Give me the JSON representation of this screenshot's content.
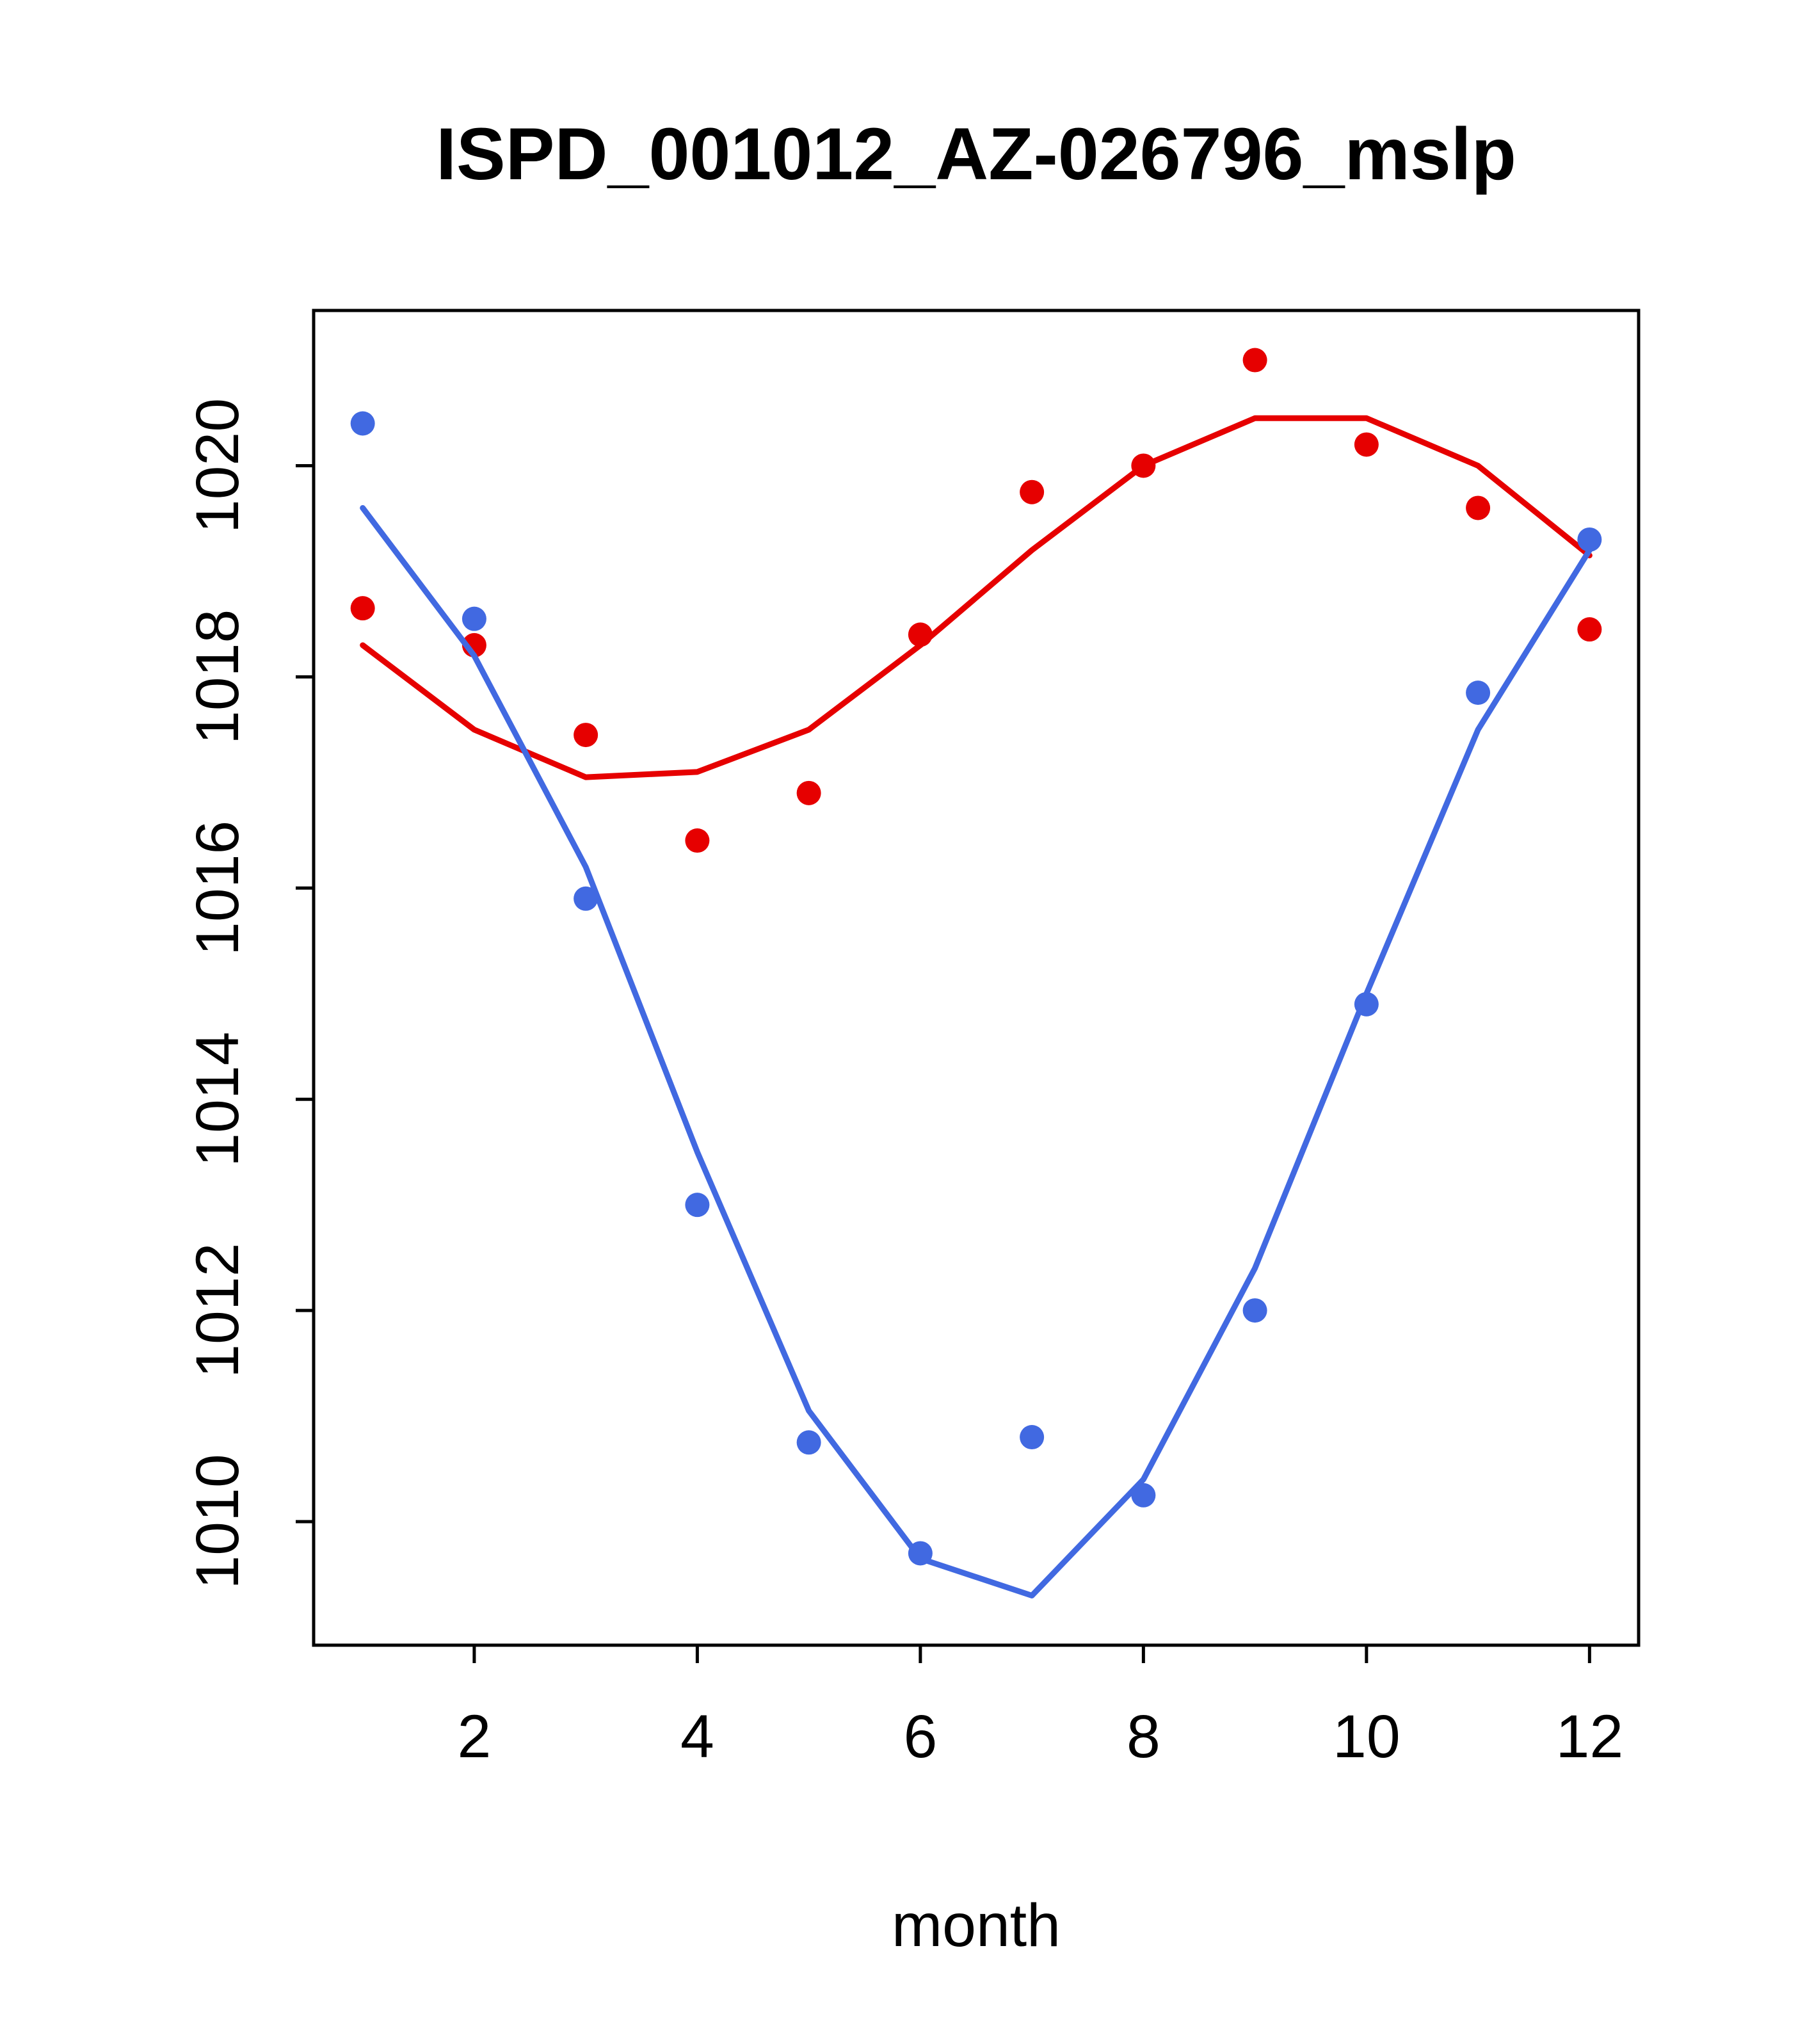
{
  "page": {
    "background": "#ffffff",
    "foreground": "#000000"
  },
  "chart_data": {
    "type": "scatter",
    "title": "ISPD_001012_AZ-026796_mslp",
    "xlabel": "month",
    "ylabel": "",
    "x": [
      1,
      2,
      3,
      4,
      5,
      6,
      7,
      8,
      9,
      10,
      11,
      12
    ],
    "xlim": [
      0.56,
      12.44
    ],
    "ylim": [
      1008.83,
      1021.47
    ],
    "xticks": [
      2,
      4,
      6,
      8,
      10,
      12
    ],
    "yticks": [
      1010,
      1012,
      1014,
      1016,
      1018,
      1020
    ],
    "grid": false,
    "legend": "none",
    "series": [
      {
        "name": "series-red",
        "color": "#e60000",
        "points": [
          1018.65,
          1018.3,
          1017.45,
          1016.45,
          1016.9,
          1018.4,
          1019.75,
          1020.0,
          1021.0,
          1020.2,
          1019.6,
          1018.45
        ],
        "smooth_line": [
          1018.3,
          1017.5,
          1017.05,
          1017.1,
          1017.5,
          1018.3,
          1019.2,
          1020.0,
          1020.45,
          1020.45,
          1020.0,
          1019.15
        ]
      },
      {
        "name": "series-blue",
        "color": "#4169e1",
        "points": [
          1020.4,
          1018.55,
          1015.9,
          1013.0,
          1010.75,
          1009.7,
          1010.8,
          1010.25,
          1012.0,
          1014.9,
          1017.85,
          1019.3
        ],
        "smooth_line": [
          1019.6,
          1018.2,
          1016.2,
          1013.5,
          1011.05,
          1009.65,
          1009.3,
          1010.4,
          1012.4,
          1015.0,
          1017.5,
          1019.2
        ]
      }
    ]
  }
}
